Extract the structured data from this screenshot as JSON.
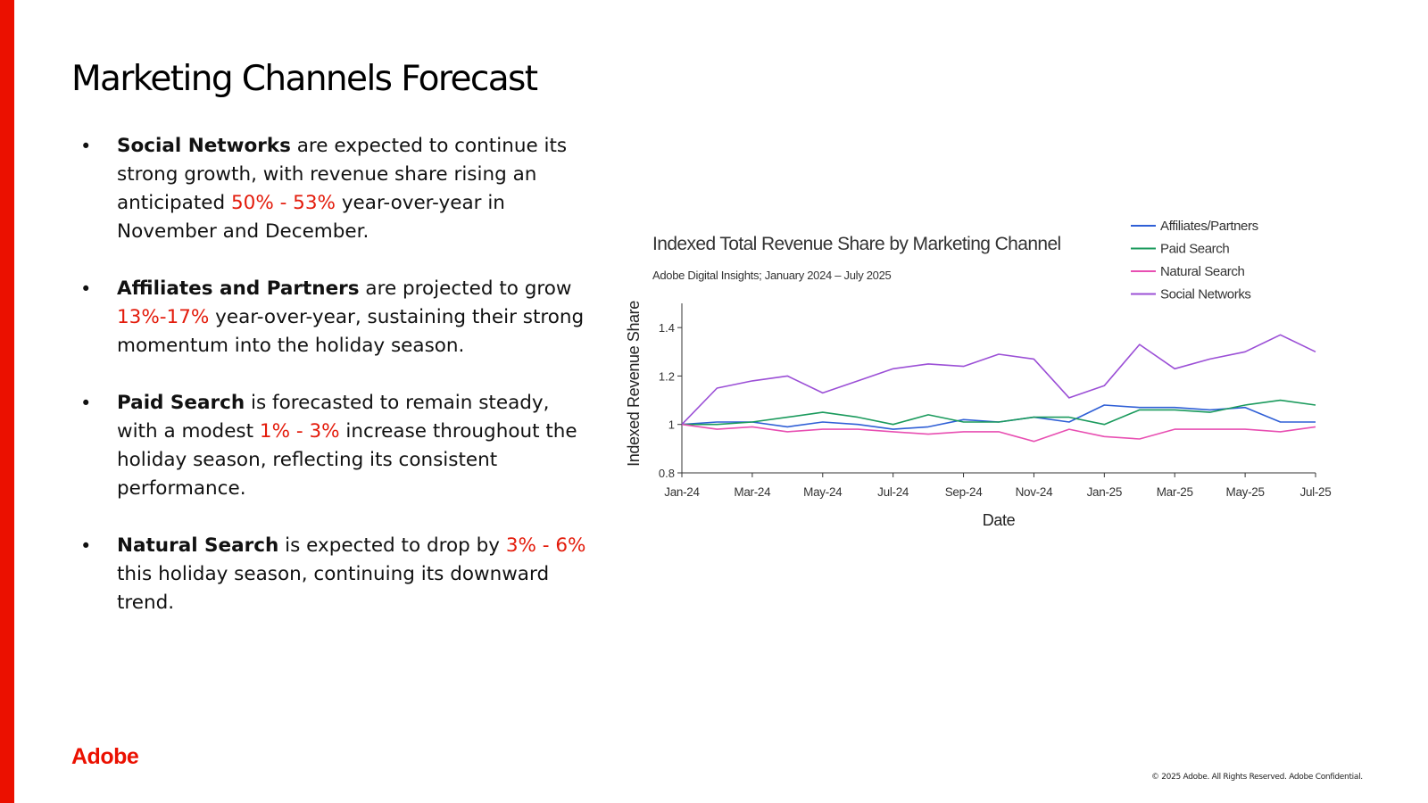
{
  "slide": {
    "title": "Marketing Channels Forecast",
    "accent_color": "#eb1000",
    "highlight_color": "#e31b0b"
  },
  "bullets": [
    {
      "bold": "Social Networks",
      "text1": " are expected to continue its strong growth, with revenue share rising an anticipated ",
      "highlight": "50% - 53%",
      "text2": " year-over-year in November and December."
    },
    {
      "bold": "Affiliates and Partners",
      "text1": " are projected to grow ",
      "highlight": "13%-17%",
      "text2": " year-over-year, sustaining their strong momentum into the holiday season."
    },
    {
      "bold": "Paid Search",
      "text1": " is forecasted to remain steady, with a modest ",
      "highlight": "1% - 3%",
      "text2": " increase throughout the holiday season, reflecting its consistent performance."
    },
    {
      "bold": "Natural Search",
      "text1": " is expected to drop by ",
      "highlight": "3% - 6%",
      "text2": " this holiday season, continuing its downward trend."
    }
  ],
  "footer": {
    "logo": "Adobe",
    "copyright": "© 2025 Adobe. All Rights Reserved. Adobe Confidential."
  },
  "chart_data": {
    "type": "line",
    "title": "Indexed Total Revenue Share by Marketing Channel",
    "subtitle": "Adobe Digital Insights; January 2024 – July 2025",
    "xlabel": "Date",
    "ylabel": "Indexed Revenue Share",
    "ylim": [
      0.8,
      1.5
    ],
    "yticks": [
      0.8,
      1,
      1.2,
      1.4
    ],
    "x": [
      "2024-01",
      "2024-02",
      "2024-03",
      "2024-04",
      "2024-05",
      "2024-06",
      "2024-07",
      "2024-08",
      "2024-09",
      "2024-10",
      "2024-11",
      "2024-12",
      "2025-01",
      "2025-02",
      "2025-03",
      "2025-04",
      "2025-05",
      "2025-06",
      "2025-07"
    ],
    "xtick_labels": [
      "Jan-24",
      "Mar-24",
      "May-24",
      "Jul-24",
      "Sep-24",
      "Nov-24",
      "Jan-25",
      "Mar-25",
      "May-25",
      "Jul-25"
    ],
    "xtick_indices": [
      0,
      2,
      4,
      6,
      8,
      10,
      12,
      14,
      16,
      18
    ],
    "grid": false,
    "legend_position": "top-right",
    "series": [
      {
        "name": "Affiliates/Partners",
        "color": "#2f5fd6",
        "values": [
          1.0,
          1.01,
          1.01,
          0.99,
          1.01,
          1.0,
          0.98,
          0.99,
          1.02,
          1.01,
          1.03,
          1.01,
          1.08,
          1.07,
          1.07,
          1.06,
          1.07,
          1.01,
          1.01
        ]
      },
      {
        "name": "Paid Search",
        "color": "#1a9a5c",
        "values": [
          1.0,
          1.0,
          1.01,
          1.03,
          1.05,
          1.03,
          1.0,
          1.04,
          1.01,
          1.01,
          1.03,
          1.03,
          1.0,
          1.06,
          1.06,
          1.05,
          1.08,
          1.1,
          1.08
        ]
      },
      {
        "name": "Natural Search",
        "color": "#e84fb2",
        "values": [
          1.0,
          0.98,
          0.99,
          0.97,
          0.98,
          0.98,
          0.97,
          0.96,
          0.97,
          0.97,
          0.93,
          0.98,
          0.95,
          0.94,
          0.98,
          0.98,
          0.98,
          0.97,
          0.99
        ]
      },
      {
        "name": "Social Networks",
        "color": "#9b4fd6",
        "values": [
          1.0,
          1.15,
          1.18,
          1.2,
          1.13,
          1.18,
          1.23,
          1.25,
          1.24,
          1.29,
          1.27,
          1.11,
          1.16,
          1.33,
          1.23,
          1.27,
          1.3,
          1.37,
          1.3
        ]
      }
    ]
  }
}
